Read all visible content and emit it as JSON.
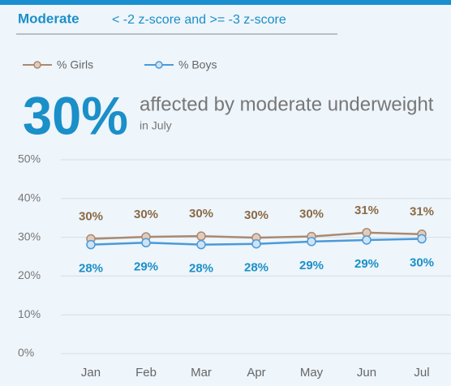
{
  "chart_data": {
    "type": "line",
    "header": "Moderate",
    "subheader": "< -2 z-score and >= -3 z-score",
    "highlight": "30%",
    "highlight_text": "affected by moderate underweight",
    "highlight_note": "in July",
    "categories": [
      "Jan",
      "Feb",
      "Mar",
      "Apr",
      "May",
      "Jun",
      "Jul"
    ],
    "series": [
      {
        "name": "% Girls",
        "color": "#a88a72",
        "marker_fill": "#e3cbbb",
        "label_color": "#8a6a45",
        "values": [
          29.6,
          30.1,
          30.3,
          29.9,
          30.2,
          31.2,
          30.8
        ],
        "value_labels": [
          "30%",
          "30%",
          "30%",
          "30%",
          "30%",
          "31%",
          "31%"
        ]
      },
      {
        "name": "% Boys",
        "color": "#4a9ad8",
        "marker_fill": "#cfe3f5",
        "label_color": "#1a8fc8",
        "values": [
          28.1,
          28.6,
          28.1,
          28.3,
          28.9,
          29.3,
          29.6
        ],
        "value_labels": [
          "28%",
          "29%",
          "28%",
          "28%",
          "29%",
          "29%",
          "30%"
        ]
      }
    ],
    "ylim": [
      0,
      50
    ],
    "yticks": [
      {
        "value": 0,
        "label": "0%"
      },
      {
        "value": 10,
        "label": "10%"
      },
      {
        "value": 20,
        "label": "20%"
      },
      {
        "value": 30,
        "label": "30%"
      },
      {
        "value": 40,
        "label": "40%"
      },
      {
        "value": 50,
        "label": "50%"
      }
    ],
    "grid": true
  }
}
